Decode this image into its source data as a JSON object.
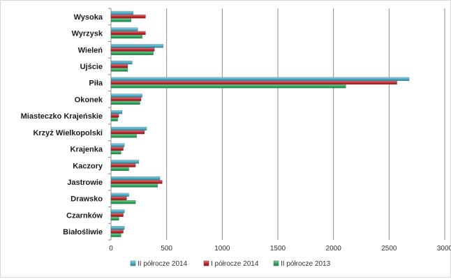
{
  "chart_data": {
    "type": "bar",
    "orientation": "horizontal",
    "title": "",
    "xlabel": "",
    "ylabel": "",
    "categories": [
      "Wysoka",
      "Wyrzysk",
      "Wieleń",
      "Ujście",
      "Piła",
      "Okonek",
      "Miasteczko Krajeńskie",
      "Krzyż Wielkopolski",
      "Krajenka",
      "Kaczory",
      "Jastrowie",
      "Drawsko",
      "Czarnków",
      "Białośliwie"
    ],
    "series": [
      {
        "name": "II półrocze 2014",
        "color": "#4bacc6",
        "values": [
          200,
          240,
          470,
          190,
          2680,
          280,
          100,
          320,
          120,
          250,
          440,
          160,
          120,
          120
        ]
      },
      {
        "name": "I półrocze 2014",
        "color": "#c0272d",
        "values": [
          310,
          310,
          390,
          150,
          2570,
          270,
          70,
          300,
          110,
          220,
          460,
          140,
          110,
          110
        ]
      },
      {
        "name": "II półrocze 2013",
        "color": "#2eaa5c",
        "values": [
          180,
          280,
          380,
          150,
          2110,
          260,
          60,
          230,
          90,
          160,
          420,
          220,
          70,
          90
        ]
      }
    ],
    "xlim": [
      0,
      3000
    ],
    "xticks": [
      "0",
      "500",
      "1000",
      "1500",
      "2000",
      "2500",
      "3000"
    ],
    "grid": true,
    "legend_position": "bottom"
  }
}
